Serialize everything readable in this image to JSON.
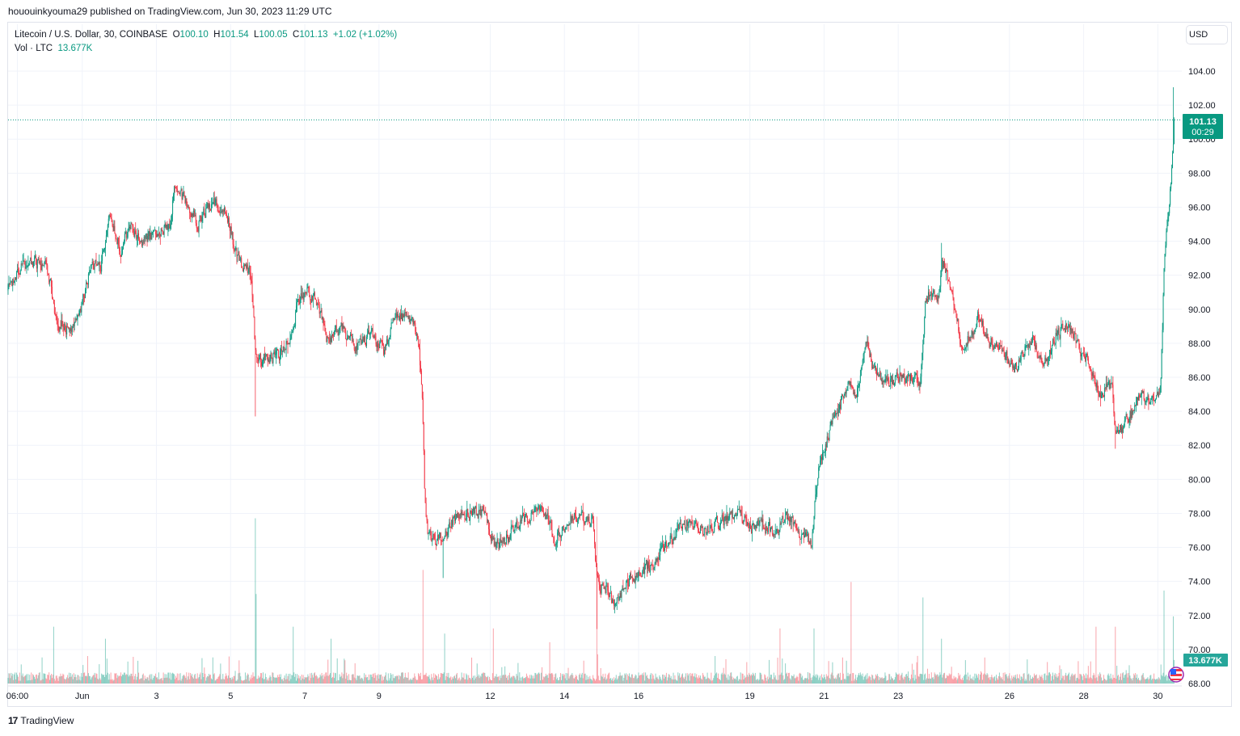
{
  "publisher_line": "hououinkyouma29 published on TradingView.com, Jun 30, 2023 11:29 UTC",
  "legend": {
    "symbol": "Litecoin / U.S. Dollar, 30, COINBASE",
    "o_label": "O",
    "o": "100.10",
    "h_label": "H",
    "h": "101.54",
    "l_label": "L",
    "l": "100.05",
    "c_label": "C",
    "c": "101.13",
    "change": "+1.02 (+1.02%)",
    "vol_label": "Vol · LTC",
    "vol": "13.677K"
  },
  "currency_button": "USD",
  "last_price_label": {
    "price": "101.13",
    "countdown": "00:29"
  },
  "volume_label": "13.677K",
  "brand": "TradingView",
  "colors": {
    "up": "#089981",
    "down": "#f23645",
    "grid": "#f0f3fa",
    "volume_label": "#26a69a"
  },
  "icons": {
    "flag": "us-flag-icon",
    "logo": "tradingview-logo-icon"
  },
  "chart_data": {
    "type": "candlestick",
    "title": "Litecoin / U.S. Dollar, 30, COINBASE",
    "interval": "30",
    "xlim": [
      "2023-05-30 00:00",
      "2023-06-30 15:30"
    ],
    "ylim": [
      68,
      104
    ],
    "y_ticks": [
      "104.00",
      "102.00",
      "100.00",
      "98.00",
      "96.00",
      "94.00",
      "92.00",
      "90.00",
      "88.00",
      "86.00",
      "84.00",
      "82.00",
      "80.00",
      "78.00",
      "76.00",
      "74.00",
      "72.00",
      "70.00",
      "68.00"
    ],
    "x_ticks": [
      {
        "label": "06:00",
        "t": "2023-05-30 06:00"
      },
      {
        "label": "Jun",
        "t": "2023-06-01 00:00"
      },
      {
        "label": "3",
        "t": "2023-06-03 00:00"
      },
      {
        "label": "5",
        "t": "2023-06-05 00:00"
      },
      {
        "label": "7",
        "t": "2023-06-07 00:00"
      },
      {
        "label": "9",
        "t": "2023-06-09 00:00"
      },
      {
        "label": "12",
        "t": "2023-06-12 00:00"
      },
      {
        "label": "14",
        "t": "2023-06-14 00:00"
      },
      {
        "label": "16",
        "t": "2023-06-16 00:00"
      },
      {
        "label": "19",
        "t": "2023-06-19 00:00"
      },
      {
        "label": "21",
        "t": "2023-06-21 00:00"
      },
      {
        "label": "23",
        "t": "2023-06-23 00:00"
      },
      {
        "label": "26",
        "t": "2023-06-26 00:00"
      },
      {
        "label": "28",
        "t": "2023-06-28 00:00"
      },
      {
        "label": "30",
        "t": "2023-06-30 00:00"
      }
    ],
    "grid": true,
    "last_price": 101.13,
    "price_path": [
      [
        "2023-05-30 00:00",
        91.1
      ],
      [
        "2023-05-30 12:00",
        93
      ],
      [
        "2023-05-30 23:30",
        92.5
      ],
      [
        "2023-05-31 03:30",
        91.5
      ],
      [
        "2023-05-31 06:00",
        89.3
      ],
      [
        "2023-05-31 15:00",
        88.8
      ],
      [
        "2023-05-31 23:00",
        90
      ],
      [
        "2023-06-01 04:30",
        92.5
      ],
      [
        "2023-06-01 12:00",
        92.5
      ],
      [
        "2023-06-01 16:30",
        95.5
      ],
      [
        "2023-06-02 01:00",
        93.5
      ],
      [
        "2023-06-02 06:30",
        95
      ],
      [
        "2023-06-02 14:30",
        94
      ],
      [
        "2023-06-03 01:00",
        94.5
      ],
      [
        "2023-06-03 08:30",
        95
      ],
      [
        "2023-06-03 11:00",
        97.2
      ],
      [
        "2023-06-03 21:30",
        96
      ],
      [
        "2023-06-04 03:00",
        95
      ],
      [
        "2023-06-04 11:00",
        96.3
      ],
      [
        "2023-06-04 21:00",
        95.8
      ],
      [
        "2023-06-05 02:30",
        93.3
      ],
      [
        "2023-06-05 13:00",
        92
      ],
      [
        "2023-06-05 16:00",
        87
      ],
      [
        "2023-06-05 20:30",
        87
      ],
      [
        "2023-06-06 07:00",
        87.3
      ],
      [
        "2023-06-06 14:00",
        88.5
      ],
      [
        "2023-06-06 21:30",
        91
      ],
      [
        "2023-06-07 06:30",
        90.8
      ],
      [
        "2023-06-07 14:30",
        88
      ],
      [
        "2023-06-07 22:30",
        89
      ],
      [
        "2023-06-08 09:00",
        87.8
      ],
      [
        "2023-06-08 19:30",
        88.5
      ],
      [
        "2023-06-09 03:00",
        87.5
      ],
      [
        "2023-06-09 11:00",
        89.8
      ],
      [
        "2023-06-09 21:30",
        89.2
      ],
      [
        "2023-06-10 01:30",
        88
      ],
      [
        "2023-06-10 04:00",
        84
      ],
      [
        "2023-06-10 05:30",
        78
      ],
      [
        "2023-06-10 08:00",
        76.5
      ],
      [
        "2023-06-10 17:30",
        76.5
      ],
      [
        "2023-06-10 23:30",
        77.5
      ],
      [
        "2023-06-11 10:00",
        78
      ],
      [
        "2023-06-11 20:30",
        78
      ],
      [
        "2023-06-12 03:00",
        76
      ],
      [
        "2023-06-12 12:30",
        76.8
      ],
      [
        "2023-06-12 20:00",
        77.5
      ],
      [
        "2023-06-13 09:00",
        78.5
      ],
      [
        "2023-06-13 17:00",
        76.5
      ],
      [
        "2023-06-14 06:00",
        77.8
      ],
      [
        "2023-06-14 18:00",
        77.5
      ],
      [
        "2023-06-14 21:00",
        73.8
      ],
      [
        "2023-06-15 03:00",
        73.5
      ],
      [
        "2023-06-15 08:30",
        72.5
      ],
      [
        "2023-06-15 16:00",
        74
      ],
      [
        "2023-06-16 00:00",
        74.5
      ],
      [
        "2023-06-16 10:30",
        75.2
      ],
      [
        "2023-06-16 21:00",
        76.5
      ],
      [
        "2023-06-17 07:30",
        77.5
      ],
      [
        "2023-06-17 18:00",
        77
      ],
      [
        "2023-06-18 04:00",
        77.5
      ],
      [
        "2023-06-18 17:30",
        78
      ],
      [
        "2023-06-19 01:00",
        77.2
      ],
      [
        "2023-06-19 11:30",
        77.2
      ],
      [
        "2023-06-19 17:00",
        76.8
      ],
      [
        "2023-06-20 00:30",
        78
      ],
      [
        "2023-06-20 08:30",
        76.8
      ],
      [
        "2023-06-20 15:30",
        76.2
      ],
      [
        "2023-06-20 19:00",
        80
      ],
      [
        "2023-06-21 00:00",
        82
      ],
      [
        "2023-06-21 08:00",
        84
      ],
      [
        "2023-06-21 16:00",
        85.5
      ],
      [
        "2023-06-21 21:00",
        85
      ],
      [
        "2023-06-22 02:30",
        88.5
      ],
      [
        "2023-06-22 07:30",
        86.5
      ],
      [
        "2023-06-22 15:30",
        85.5
      ],
      [
        "2023-06-22 23:30",
        86
      ],
      [
        "2023-06-23 10:00",
        86
      ],
      [
        "2023-06-23 14:00",
        85.5
      ],
      [
        "2023-06-23 17:30",
        91
      ],
      [
        "2023-06-24 01:30",
        90.5
      ],
      [
        "2023-06-24 04:00",
        93
      ],
      [
        "2023-06-24 12:00",
        90.5
      ],
      [
        "2023-06-24 17:00",
        87.5
      ],
      [
        "2023-06-25 03:30",
        89.5
      ],
      [
        "2023-06-25 11:30",
        88
      ],
      [
        "2023-06-25 19:30",
        87.5
      ],
      [
        "2023-06-26 03:00",
        86.5
      ],
      [
        "2023-06-26 13:30",
        88.5
      ],
      [
        "2023-06-26 21:30",
        86.5
      ],
      [
        "2023-06-27 05:30",
        88.5
      ],
      [
        "2023-06-27 13:00",
        89
      ],
      [
        "2023-06-27 21:00",
        87.8
      ],
      [
        "2023-06-28 05:00",
        86.5
      ],
      [
        "2023-06-28 10:00",
        85
      ],
      [
        "2023-06-28 18:00",
        85.5
      ],
      [
        "2023-06-28 20:30",
        82.5
      ],
      [
        "2023-06-29 04:30",
        83.5
      ],
      [
        "2023-06-29 12:00",
        85
      ],
      [
        "2023-06-29 20:00",
        84.5
      ],
      [
        "2023-06-30 01:30",
        85.5
      ],
      [
        "2023-06-30 04:00",
        93.5
      ],
      [
        "2023-06-30 06:30",
        95.5
      ],
      [
        "2023-06-30 09:00",
        98.5
      ],
      [
        "2023-06-30 10:30",
        101.13
      ]
    ],
    "extremes": [
      {
        "t": "2023-06-05 16:00",
        "low": 83.7
      },
      {
        "t": "2023-06-10 17:30",
        "low": 74.2
      },
      {
        "t": "2023-06-14 21:00",
        "low": 71.2
      },
      {
        "t": "2023-06-28 20:30",
        "low": 81.8
      },
      {
        "t": "2023-06-24 04:00",
        "high": 93.9
      },
      {
        "t": "2023-06-30 10:00",
        "high": 103.05
      }
    ],
    "volume_unit": "K LTC",
    "volume_spikes": [
      {
        "t": "2023-05-31 05:30",
        "v": 33,
        "dir": "up"
      },
      {
        "t": "2023-06-01 15:00",
        "v": 26,
        "dir": "up"
      },
      {
        "t": "2023-06-05 16:00",
        "v": 96,
        "dir": "up"
      },
      {
        "t": "2023-06-05 16:30",
        "v": 52,
        "dir": "up"
      },
      {
        "t": "2023-06-06 16:30",
        "v": 33,
        "dir": "up"
      },
      {
        "t": "2023-06-07 17:00",
        "v": 26,
        "dir": "up"
      },
      {
        "t": "2023-06-10 04:30",
        "v": 66,
        "dir": "down"
      },
      {
        "t": "2023-06-10 18:30",
        "v": 29,
        "dir": "up"
      },
      {
        "t": "2023-06-12 02:00",
        "v": 32,
        "dir": "down"
      },
      {
        "t": "2023-06-13 14:30",
        "v": 24,
        "dir": "down"
      },
      {
        "t": "2023-06-14 21:00",
        "v": 97,
        "dir": "down"
      },
      {
        "t": "2023-06-19 19:30",
        "v": 32,
        "dir": "down"
      },
      {
        "t": "2023-06-20 17:30",
        "v": 32,
        "dir": "up"
      },
      {
        "t": "2023-06-21 17:30",
        "v": 59,
        "dir": "down"
      },
      {
        "t": "2023-06-23 16:00",
        "v": 50,
        "dir": "up"
      },
      {
        "t": "2023-06-24 04:00",
        "v": 26,
        "dir": "up"
      },
      {
        "t": "2023-06-28 08:00",
        "v": 33,
        "dir": "down"
      },
      {
        "t": "2023-06-28 20:30",
        "v": 33,
        "dir": "down"
      },
      {
        "t": "2023-06-30 04:00",
        "v": 54,
        "dir": "up"
      },
      {
        "t": "2023-06-30 10:00",
        "v": 39,
        "dir": "up"
      },
      {
        "t": "2023-06-30 10:30",
        "v": 13.677,
        "dir": "up"
      }
    ]
  }
}
